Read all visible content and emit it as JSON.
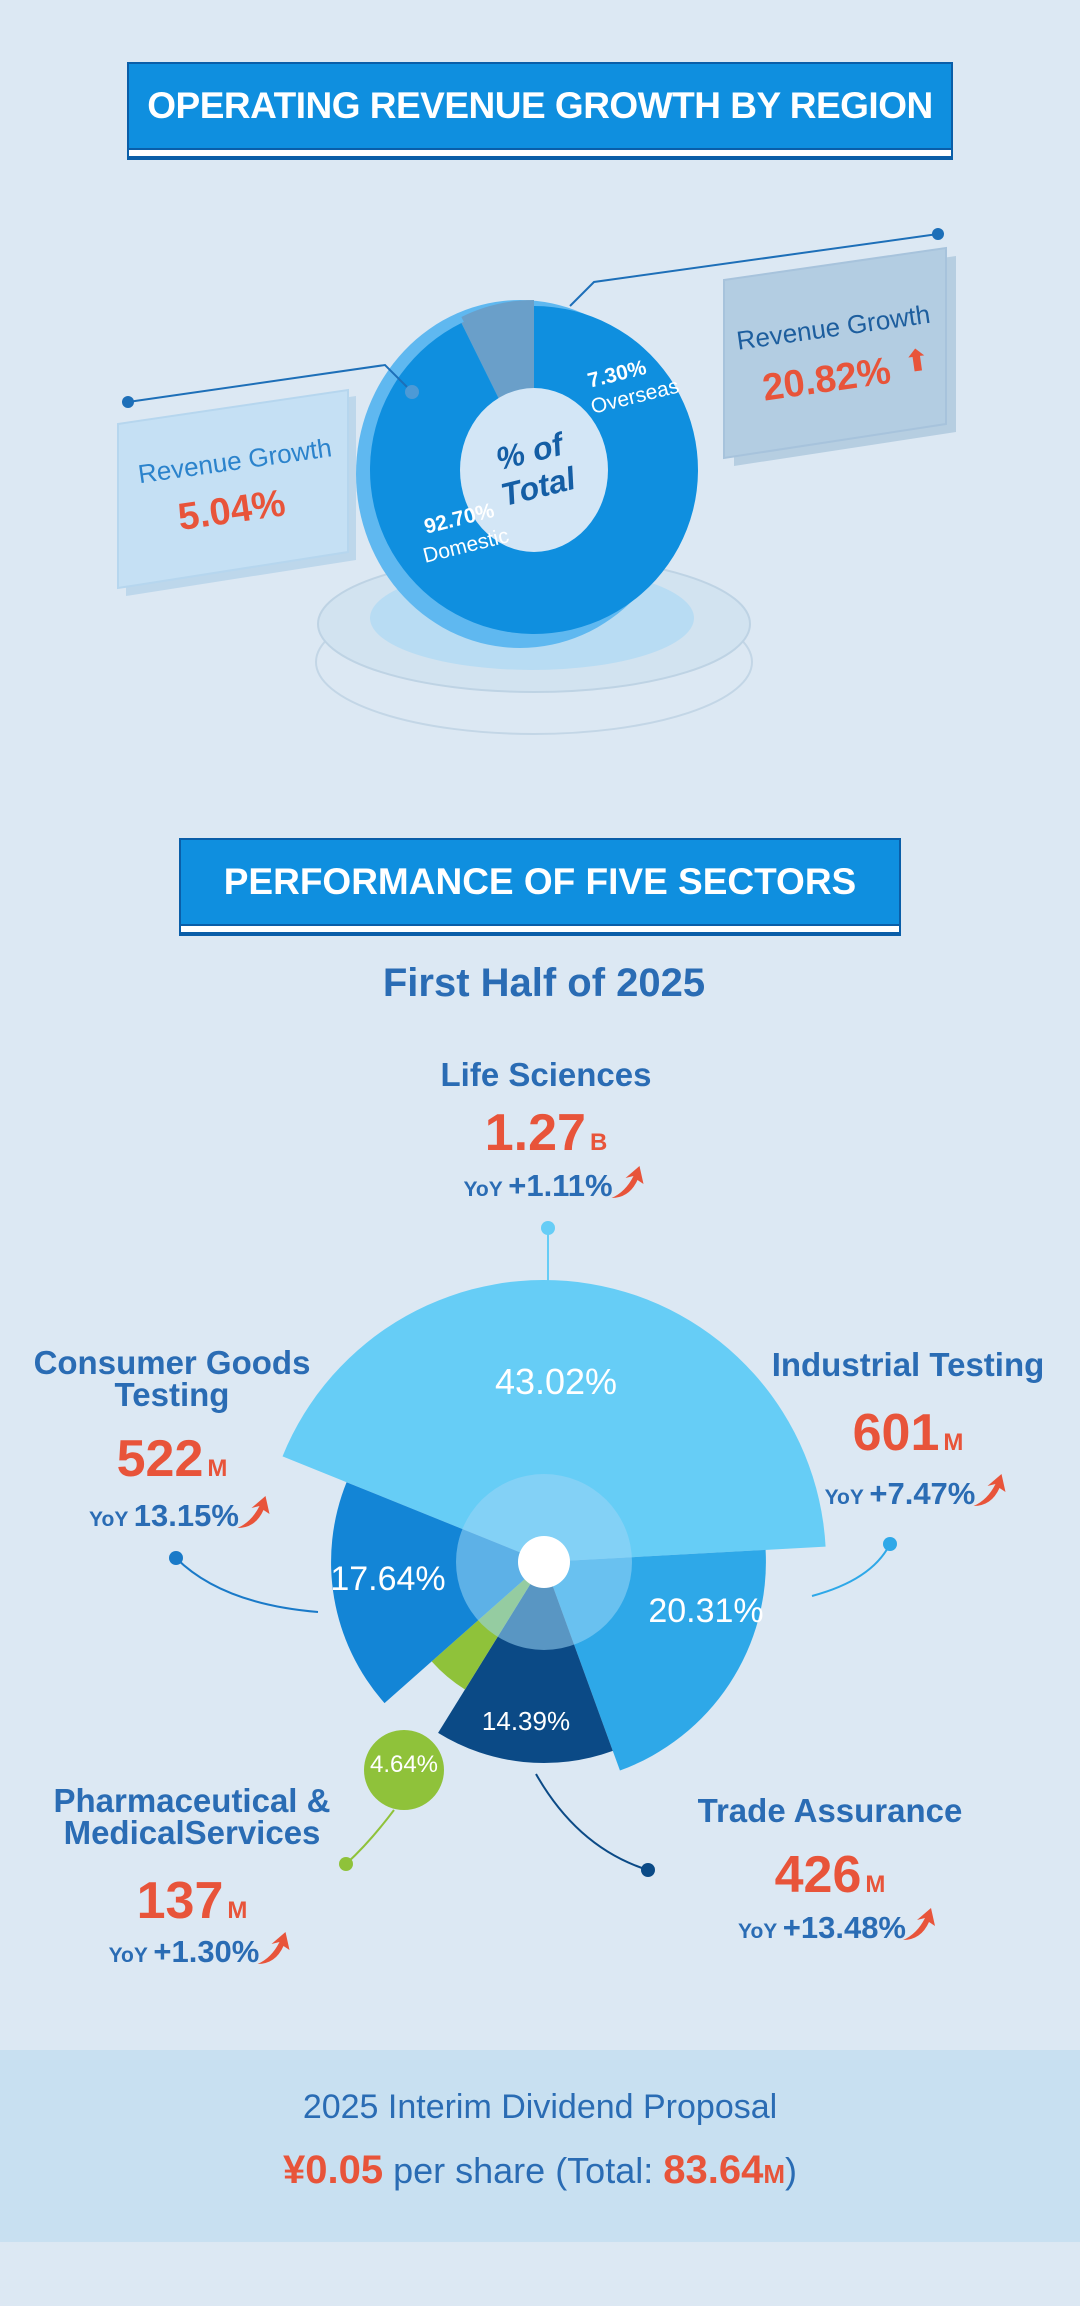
{
  "section1": {
    "title": "OPERATING REVENUE GROWTH BY REGION",
    "center_label_1": "% of",
    "center_label_2": "Total"
  },
  "section2": {
    "title": "PERFORMANCE OF FIVE SECTORS",
    "subtitle": "First Half of 2025"
  },
  "dividend": {
    "title": "2025 Interim Dividend Proposal",
    "amount": "¥0.05",
    "per_share": "per share (Total: ",
    "total": "83.64",
    "total_unit": "M",
    "close": ")"
  },
  "colors": {
    "domestic": "#0f8fdf",
    "overseas": "#6a9fc9",
    "life_sciences": "#66cdf6",
    "industrial": "#2ea8e8",
    "trade": "#0b4a86",
    "pharma": "#8fc23a",
    "consumer": "#1385d6",
    "accent_red": "#e8543a",
    "text_blue": "#2a6cb4"
  },
  "chart_data": [
    {
      "type": "pie",
      "title": "OPERATING REVENUE GROWTH BY REGION",
      "categories": [
        "Domestic",
        "Overseas"
      ],
      "values": [
        92.7,
        7.3
      ],
      "slice_labels": [
        "92.70%",
        "7.30%"
      ],
      "growth_label": "Revenue Growth",
      "growth": [
        {
          "region": "Domestic",
          "value": "5.04%"
        },
        {
          "region": "Overseas",
          "value": "20.82%"
        }
      ]
    },
    {
      "type": "pie",
      "title": "PERFORMANCE OF FIVE SECTORS",
      "subtitle": "First Half of 2025",
      "categories": [
        "Life Sciences",
        "Industrial Testing",
        "Trade Assurance",
        "Pharmaceutical & MedicalServices",
        "Consumer Goods Testing"
      ],
      "name_lines": [
        [
          "Life Sciences"
        ],
        [
          "Industrial Testing"
        ],
        [
          "Trade Assurance"
        ],
        [
          "Pharmaceutical &",
          "MedicalServices"
        ],
        [
          "Consumer Goods",
          "Testing"
        ]
      ],
      "values": [
        43.02,
        20.31,
        14.39,
        4.64,
        17.64
      ],
      "slice_labels": [
        "43.02%",
        "20.31%",
        "14.39%",
        "4.64%",
        "17.64%"
      ],
      "revenue": [
        "1.27",
        "601",
        "426",
        "137",
        "522"
      ],
      "revenue_units": [
        "B",
        "M",
        "M",
        "M",
        "M"
      ],
      "yoy_prefix": "YoY",
      "yoy": [
        "+1.11%",
        "+7.47%",
        "+13.48%",
        "+1.30%",
        "13.15%"
      ]
    }
  ]
}
